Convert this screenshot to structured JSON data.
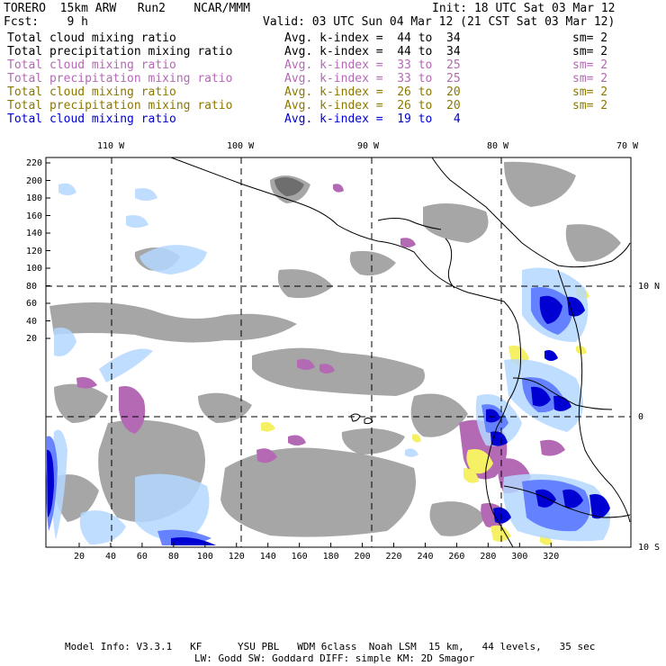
{
  "header": {
    "model_line": "TORERO  15km ARW   Run2    NCAR/MMM",
    "init_line": "Init: 18 UTC Sat 03 Mar 12",
    "fcst_line": "Fcst:    9 h",
    "valid_line": "Valid: 03 UTC Sun 04 Mar 12 (21 CST Sat 03 Mar 12)"
  },
  "legend": [
    {
      "field": "Total cloud mixing ratio",
      "index": "Avg. k-index =  44 to  34",
      "sm": "sm= 2",
      "color": "#000000"
    },
    {
      "field": "Total precipitation mixing ratio",
      "index": "Avg. k-index =  44 to  34",
      "sm": "sm= 2",
      "color": "#000000"
    },
    {
      "field": "Total cloud mixing ratio",
      "index": "Avg. k-index =  33 to  25",
      "sm": "sm= 2",
      "color": "#b469b4"
    },
    {
      "field": "Total precipitation mixing ratio",
      "index": "Avg. k-index =  33 to  25",
      "sm": "sm= 2",
      "color": "#b469b4"
    },
    {
      "field": "Total cloud mixing ratio",
      "index": "Avg. k-index =  26 to  20",
      "sm": "sm= 2",
      "color": "#8c7800"
    },
    {
      "field": "Total precipitation mixing ratio",
      "index": "Avg. k-index =  26 to  20",
      "sm": "sm= 2",
      "color": "#8c7800"
    },
    {
      "field": "Total cloud mixing ratio",
      "index": "Avg. k-index =  19 to   4",
      "sm": "",
      "color": "#0000d2"
    }
  ],
  "map": {
    "lon_labels": [
      "110 W",
      "100 W",
      "90 W",
      "80 W",
      "70 W"
    ],
    "lat_labels": [
      "10 N",
      "0",
      "10 S"
    ],
    "y_grid_labels": [
      "220",
      "200",
      "180",
      "160",
      "140",
      "120",
      "100",
      "80",
      "60",
      "40",
      "20"
    ],
    "x_grid_labels": [
      "20",
      "40",
      "60",
      "80",
      "100",
      "120",
      "140",
      "160",
      "180",
      "200",
      "220",
      "240",
      "260",
      "280",
      "300",
      "320"
    ],
    "colors": {
      "gray_cloud": "#9c9c9c",
      "gray_dark": "#6e6e6e",
      "purple": "#b469b4",
      "yellow": "#f5f064",
      "blue_dark": "#0000d2",
      "blue_mid": "#5a78ff",
      "blue_light": "#b4d7ff",
      "coast": "#000000"
    }
  },
  "footer": {
    "line1": "Model Info: V3.3.1   KF      YSU PBL   WDM 6class  Noah LSM  15 km,   44 levels,   35 sec",
    "line2": "LW: Godd SW: Goddard DIFF: simple KM: 2D Smagor"
  }
}
